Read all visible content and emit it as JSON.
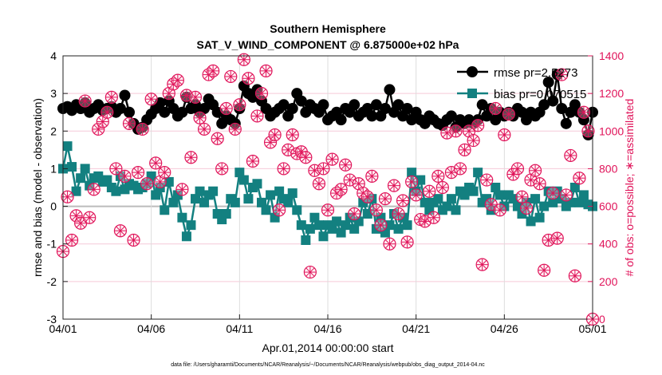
{
  "chart_data": {
    "type": "line",
    "title": "Southern Hemisphere",
    "subtitle": "SAT_V_WIND_COMPONENT @ 6.875000e+02 hPa",
    "xlabel": "Apr.01,2014 00:00:00 start",
    "ylabel": "rmse and bias (model - observation)",
    "ylabel_right": "# of obs: o=possible; ∗=assimilated",
    "footer": "data file: /Users/gharamti/Documents/NCAR/Reanalysis/~/Documents/NCAR/Reanalysis/webpub/obs_diag_output_2014-04.nc",
    "xlim_days": [
      0,
      30
    ],
    "x_ticks": [
      {
        "day": 0,
        "label": "04/01"
      },
      {
        "day": 5,
        "label": "04/06"
      },
      {
        "day": 10,
        "label": "04/11"
      },
      {
        "day": 15,
        "label": "04/16"
      },
      {
        "day": 20,
        "label": "04/21"
      },
      {
        "day": 25,
        "label": "04/26"
      },
      {
        "day": 30,
        "label": "05/01"
      }
    ],
    "ylim": [
      -3,
      4
    ],
    "y_ticks": [
      "-3",
      "-2",
      "-1",
      "0",
      "1",
      "2",
      "3",
      "4"
    ],
    "ylim_right": [
      0,
      1400
    ],
    "y_ticks_right": [
      "0",
      "200",
      "400",
      "600",
      "800",
      "1000",
      "1200",
      "1400"
    ],
    "grid": true,
    "legend_position": "top-right",
    "x_step_days": 0.25,
    "series": [
      {
        "name": "rmse pr=2.5273",
        "color": "#000000",
        "marker": "circle",
        "values": [
          2.6,
          2.65,
          2.55,
          2.7,
          2.6,
          2.75,
          2.5,
          2.6,
          2.7,
          2.55,
          2.6,
          2.65,
          2.5,
          2.6,
          2.95,
          2.5,
          2.2,
          2.05,
          2.1,
          2.3,
          2.45,
          2.6,
          2.75,
          2.5,
          2.8,
          2.6,
          2.4,
          2.5,
          2.9,
          2.6,
          2.7,
          2.5,
          2.6,
          2.85,
          2.7,
          2.5,
          2.2,
          2.4,
          2.3,
          2.2,
          2.6,
          3.2,
          3.0,
          2.9,
          3.1,
          2.8,
          2.6,
          2.4,
          2.5,
          2.6,
          2.7,
          2.4,
          2.6,
          3.0,
          2.8,
          2.5,
          2.7,
          2.6,
          2.5,
          2.7,
          2.3,
          2.4,
          2.5,
          2.3,
          2.6,
          2.5,
          2.7,
          2.4,
          2.5,
          2.6,
          2.4,
          2.7,
          2.4,
          2.6,
          3.1,
          2.5,
          2.7,
          2.4,
          2.6,
          2.3,
          2.5,
          2.3,
          2.2,
          2.4,
          2.3,
          2.2,
          2.15,
          2.3,
          2.4,
          2.1,
          2.3,
          2.2,
          2.3,
          2.2,
          2.3,
          2.7,
          2.4,
          2.6,
          2.3,
          2.5,
          2.4,
          2.5,
          2.4,
          2.6,
          2.5,
          2.3,
          2.5,
          2.4,
          2.5,
          2.7,
          3.3,
          2.8,
          3.5,
          2.6,
          2.2,
          2.5,
          2.7,
          2.5,
          2.3,
          1.9,
          2.5
        ]
      },
      {
        "name": "bias pr=0.070515",
        "color": "#138080",
        "marker": "square",
        "values": [
          1.0,
          1.6,
          1.05,
          0.4,
          0.75,
          1.0,
          0.55,
          0.75,
          0.8,
          0.65,
          0.7,
          0.5,
          0.4,
          0.8,
          0.45,
          0.6,
          0.55,
          0.45,
          0.5,
          0.6,
          0.8,
          0.3,
          0.5,
          -0.1,
          0.65,
          0.1,
          0.3,
          -0.3,
          -0.8,
          -0.5,
          0.2,
          0.4,
          0.1,
          0.3,
          0.4,
          -0.2,
          -0.35,
          -0.2,
          0.2,
          0.1,
          0.9,
          0.7,
          0.2,
          0.5,
          0.6,
          0.1,
          -0.1,
          0.3,
          -0.3,
          0.4,
          0.2,
          0.1,
          0.35,
          -0.1,
          -0.5,
          -0.9,
          -0.6,
          -0.3,
          -0.5,
          -0.8,
          -0.5,
          -0.6,
          -0.4,
          -0.7,
          -0.5,
          -0.3,
          -0.6,
          -0.4,
          0.1,
          -0.2,
          0.2,
          -0.6,
          -0.3,
          -0.7,
          -0.5,
          -0.2,
          -0.6,
          -0.3,
          -0.5,
          0.9,
          0.4,
          0.7,
          0.1,
          -0.1,
          0.1,
          0.2,
          -0.1,
          0.0,
          0.2,
          -0.1,
          0.4,
          0.3,
          0.5,
          0.4,
          0.9,
          0.1,
          0.2,
          -0.1,
          0.5,
          0.3,
          0.0,
          0.3,
          0.2,
          0.0,
          -0.2,
          0.1,
          -0.4,
          0.2,
          -0.3,
          0.0,
          0.4,
          0.1,
          0.4,
          0.2,
          0.0,
          0.1,
          0.5,
          0.1,
          0.3,
          0.05,
          0.0
        ]
      },
      {
        "name": "# of obs",
        "color": "#e0145a",
        "marker": "circle-asterisk",
        "axis": "right",
        "values": [
          360,
          650,
          420,
          550,
          510,
          1160,
          540,
          690,
          1010,
          1050,
          1100,
          1180,
          800,
          470,
          760,
          1040,
          420,
          780,
          1010,
          720,
          1170,
          830,
          730,
          780,
          1200,
          1250,
          1270,
          690,
          1190,
          860,
          1180,
          1070,
          1010,
          1300,
          1320,
          960,
          800,
          1120,
          1290,
          1010,
          1140,
          1380,
          1280,
          840,
          1080,
          1200,
          1320,
          940,
          980,
          580,
          800,
          900,
          980,
          880,
          890,
          860,
          250,
          790,
          720,
          800,
          580,
          850,
          670,
          690,
          820,
          740,
          560,
          720,
          670,
          650,
          760,
          580,
          500,
          640,
          400,
          710,
          560,
          630,
          410,
          730,
          660,
          530,
          520,
          680,
          540,
          760,
          700,
          990,
          780,
          1000,
          800,
          900,
          1000,
          950,
          1030,
          290,
          740,
          610,
          1120,
          580,
          980,
          1090,
          770,
          800,
          650,
          590,
          740,
          790,
          720,
          260,
          420,
          670,
          430,
          1300,
          660,
          870,
          230,
          750,
          1100,
          1000,
          0
        ]
      }
    ]
  }
}
